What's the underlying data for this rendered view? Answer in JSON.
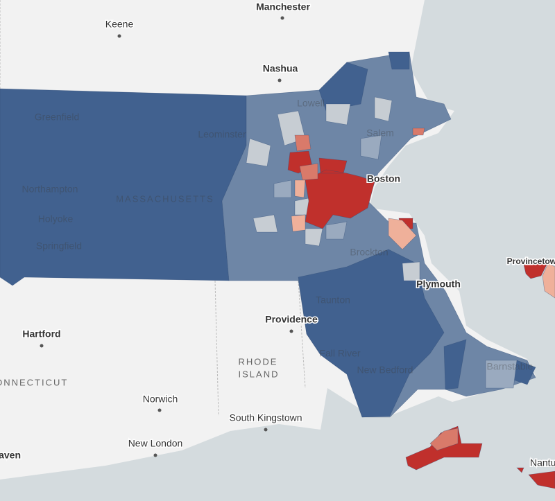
{
  "labels": [
    "Manchester",
    "Keene",
    "Nashua",
    "Lowell",
    "Greenfield",
    "Leominster",
    "Salem",
    "Boston",
    "Northampton",
    "MASSACHUSETTS",
    "Holyoke",
    "Springfield",
    "Brockton",
    "Plymouth",
    "Provincetown",
    "Providence",
    "Taunton",
    "Hartford",
    "RHODE",
    "ISLAND",
    "CONNECTICUT",
    "Fall River",
    "New Bedford",
    "Barnstable",
    "Norwich",
    "South Kingstown",
    "New London",
    "Haven",
    "Nantucket"
  ]
}
